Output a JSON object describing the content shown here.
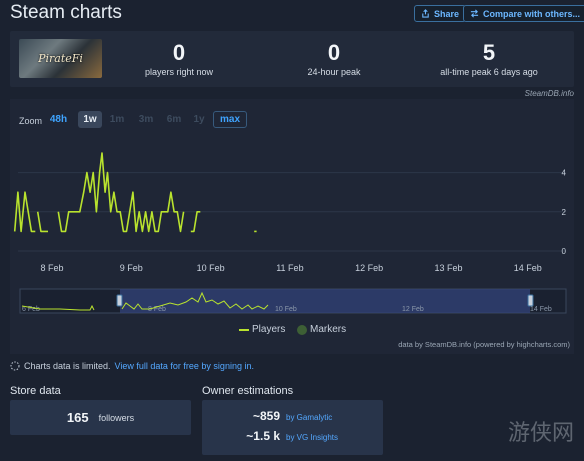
{
  "header": {
    "title": "Steam charts",
    "share_label": "Share",
    "compare_label": "Compare with others..."
  },
  "game": {
    "logo_text": "PirateFi"
  },
  "stats": [
    {
      "value": "0",
      "label": "players right now"
    },
    {
      "value": "0",
      "label": "24-hour peak"
    },
    {
      "value": "5",
      "label": "all-time peak 6 days ago"
    }
  ],
  "chart_credit_top": "SteamDB.info",
  "zoom": {
    "label": "Zoom",
    "options": [
      "48h",
      "1w",
      "1m",
      "3m",
      "6m",
      "1y",
      "max"
    ],
    "selected": "1w"
  },
  "chart_data": {
    "type": "line",
    "x_tick_labels": [
      "8 Feb",
      "9 Feb",
      "10 Feb",
      "11 Feb",
      "12 Feb",
      "13 Feb",
      "14 Feb"
    ],
    "y_tick_labels": [
      "0",
      "2",
      "4"
    ],
    "ylim": [
      0,
      5
    ],
    "series": [
      {
        "name": "Players",
        "color": "#b9e32e",
        "segments": [
          [
            [
              7.53,
              1
            ],
            [
              7.57,
              3
            ],
            [
              7.61,
              1
            ],
            [
              7.66,
              3
            ],
            [
              7.7,
              2
            ],
            [
              7.74,
              1
            ],
            [
              7.79,
              1
            ]
          ],
          [
            [
              7.82,
              2
            ],
            [
              7.86,
              1
            ],
            [
              7.91,
              1
            ],
            [
              7.95,
              1
            ]
          ],
          [
            [
              8.08,
              2
            ],
            [
              8.12,
              1
            ],
            [
              8.17,
              1
            ],
            [
              8.21,
              2
            ],
            [
              8.26,
              2
            ],
            [
              8.3,
              2
            ],
            [
              8.35,
              2
            ],
            [
              8.4,
              3
            ],
            [
              8.44,
              4
            ],
            [
              8.48,
              3
            ],
            [
              8.52,
              4
            ],
            [
              8.56,
              2
            ],
            [
              8.6,
              4
            ],
            [
              8.63,
              5
            ],
            [
              8.67,
              3
            ],
            [
              8.7,
              4
            ],
            [
              8.74,
              2
            ],
            [
              8.78,
              3
            ],
            [
              8.82,
              2
            ],
            [
              8.86,
              2
            ],
            [
              8.9,
              1
            ],
            [
              8.94,
              1
            ],
            [
              8.98,
              2
            ],
            [
              9.02,
              3
            ],
            [
              9.06,
              1
            ],
            [
              9.1,
              2
            ],
            [
              9.14,
              1
            ],
            [
              9.18,
              2
            ],
            [
              9.22,
              1
            ],
            [
              9.26,
              2
            ],
            [
              9.3,
              1
            ],
            [
              9.34,
              1
            ],
            [
              9.38,
              2
            ],
            [
              9.42,
              2
            ],
            [
              9.46,
              2
            ],
            [
              9.5,
              3
            ],
            [
              9.54,
              2
            ],
            [
              9.58,
              2
            ],
            [
              9.62,
              1
            ],
            [
              9.66,
              2
            ]
          ],
          [
            [
              9.75,
              1
            ],
            [
              9.79,
              1
            ],
            [
              9.83,
              2
            ],
            [
              9.87,
              2
            ]
          ],
          [
            [
              10.55,
              1
            ],
            [
              10.58,
              1
            ]
          ]
        ]
      }
    ],
    "legend": [
      "Players",
      "Markers"
    ],
    "navigator_labels": [
      "6 Feb",
      "8 Feb",
      "10 Feb",
      "12 Feb",
      "14 Feb"
    ]
  },
  "chart_credit": "data by SteamDB.info (powered by highcharts.com)",
  "notice": {
    "text": "Charts data is limited.",
    "link": "View full data for free by signing in."
  },
  "store": {
    "title": "Store data",
    "followers_value": "165",
    "followers_label": "followers"
  },
  "owners": {
    "title": "Owner estimations",
    "rows": [
      {
        "value": "~859",
        "source": "by Gamalytic"
      },
      {
        "value": "~1.5 k",
        "source": "by VG Insights"
      }
    ]
  },
  "watermark": "游侠网"
}
